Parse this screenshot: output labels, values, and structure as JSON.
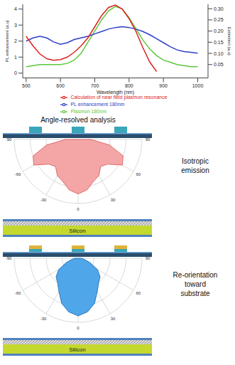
{
  "chart_data": {
    "type": "line",
    "x_label": "Wavelength (nm)",
    "y_label": "PL enhancement (a.u)",
    "y2_label": "Extinction (a.u)",
    "xlim": [
      490,
      1030
    ],
    "xticks": [
      500,
      600,
      700,
      800,
      900,
      1000
    ],
    "ylim": [
      -0.3,
      4.3
    ],
    "yticks": [
      0,
      1,
      2,
      3,
      4
    ],
    "y2lim": [
      -0.01,
      0.32
    ],
    "y2ticks": [
      0.05,
      {
        "value": 0.1,
        "label": "0.10"
      },
      0.15,
      {
        "value": 0.2,
        "label": "0.20"
      },
      0.25,
      {
        "value": 0.3,
        "label": "0.30"
      }
    ],
    "legend": "bottom",
    "x": [
      500,
      520,
      540,
      560,
      580,
      600,
      620,
      640,
      660,
      680,
      700,
      720,
      740,
      760,
      780,
      800,
      820,
      840,
      860,
      880,
      900,
      920,
      940,
      960,
      980,
      1000
    ],
    "series": [
      {
        "name": "Plasmon 180nm",
        "color": "#5cc83a",
        "axis": "y2",
        "values": [
          0.04,
          0.045,
          0.05,
          0.05,
          0.05,
          0.05,
          0.055,
          0.07,
          0.1,
          0.15,
          0.2,
          0.25,
          0.29,
          0.31,
          0.3,
          0.26,
          0.21,
          0.16,
          0.12,
          0.09,
          0.07,
          0.06,
          0.05,
          0.045,
          0.04,
          0.04
        ]
      },
      {
        "name": "PL enhancement 180nm",
        "color": "#2e3fc8",
        "axis": "y",
        "values": [
          2.0,
          2.2,
          2.3,
          2.2,
          1.95,
          1.8,
          1.9,
          2.1,
          2.2,
          2.3,
          2.45,
          2.6,
          2.75,
          2.85,
          2.9,
          2.85,
          2.75,
          2.6,
          2.4,
          2.15,
          1.9,
          1.65,
          1.45,
          1.35,
          1.3,
          1.25
        ]
      },
      {
        "name": "Calculation of near field plasmon resonance",
        "color": "#e02020",
        "axis": "y",
        "values": [
          2.3,
          1.7,
          1.2,
          0.9,
          0.8,
          0.85,
          1.0,
          1.3,
          1.7,
          2.2,
          2.9,
          3.6,
          4.1,
          4.25,
          4.0,
          3.4,
          2.6,
          1.6,
          0.7,
          0.1,
          null,
          null,
          null,
          null,
          null,
          null
        ]
      }
    ]
  },
  "caption": "Angle-resolved analysis",
  "panels": [
    {
      "label": "Isotropic emission",
      "substrate": "Silicon",
      "fill": "#f4a6a6",
      "color": "#e06b6b",
      "pillar_colors": [
        "#3aa6b9",
        "#3aa6b9"
      ],
      "angles": [
        -90,
        -80,
        -70,
        -60,
        -50,
        -40,
        -30,
        -20,
        -10,
        0,
        10,
        20,
        30,
        40,
        50,
        60,
        70,
        80,
        90
      ],
      "r": [
        0.2,
        0.5,
        0.75,
        0.8,
        0.6,
        0.55,
        0.65,
        0.7,
        0.8,
        0.85,
        0.8,
        0.7,
        0.65,
        0.55,
        0.6,
        0.8,
        0.75,
        0.5,
        0.2
      ],
      "rlim": [
        0,
        1
      ],
      "rticks": [
        0.25,
        0.5,
        0.75,
        1
      ],
      "angle_ticks": [
        -90,
        -60,
        -30,
        0,
        30,
        60,
        90
      ]
    },
    {
      "label": "Re-orientation toward substrate",
      "substrate": "Silicon",
      "fill": "#4fa6e8",
      "color": "#2a78c0",
      "pillar_colors": [
        "#e0b23a",
        "#3aa6b9"
      ],
      "angles": [
        -90,
        -80,
        -70,
        -60,
        -50,
        -40,
        -30,
        -20,
        -10,
        0,
        10,
        20,
        30,
        40,
        50,
        60,
        70,
        80,
        90
      ],
      "r": [
        0.05,
        0.1,
        0.2,
        0.35,
        0.45,
        0.5,
        0.6,
        0.75,
        0.85,
        0.9,
        0.85,
        0.75,
        0.6,
        0.5,
        0.45,
        0.35,
        0.2,
        0.1,
        0.05
      ],
      "rlim": [
        0,
        1
      ],
      "rticks": [
        0.25,
        0.5,
        0.75,
        1
      ],
      "angle_ticks": [
        -90,
        -60,
        -30,
        0,
        30,
        60,
        90
      ]
    }
  ]
}
